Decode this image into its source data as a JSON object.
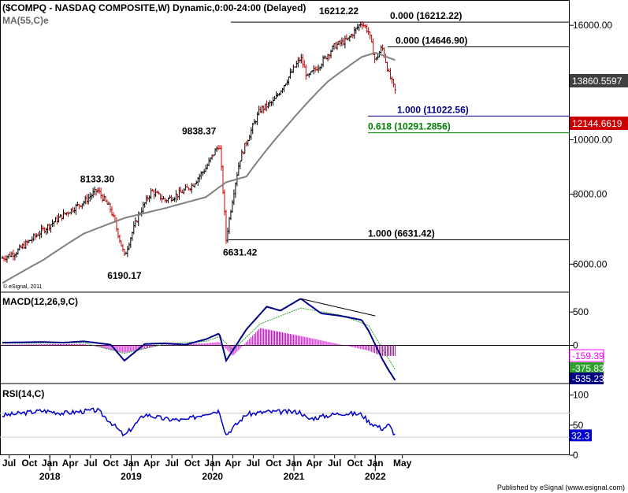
{
  "header": {
    "title": "($COMPQ - NASDAQ COMPOSITE,W) Dynamic,0:00-24:00 (Delayed)",
    "ma_label": "MA(55,C)e",
    "copyright": "© eSignal, 2011",
    "footer": "Published by eSignal (www.esignal.com)"
  },
  "chart_data": [
    {
      "type": "line",
      "name": "price-panel",
      "title": "($COMPQ - NASDAQ COMPOSITE,W) Dynamic,0:00-24:00 (Delayed)",
      "y_ticks": [
        "16000.00",
        "10000.00",
        "8000.00",
        "6000.00"
      ],
      "ylim": [
        6000,
        16500
      ],
      "annotations": {
        "price_labels": [
          "8133.30",
          "6190.17",
          "6631.42",
          "9838.37",
          "16212.22"
        ],
        "fib_levels": [
          {
            "label": "0.000 (16212.22)",
            "value": 16212.22,
            "color": "#000000"
          },
          {
            "label": "0.000 (14646.90)",
            "value": 14646.9,
            "color": "#000000"
          },
          {
            "label": "1.000 (11022.56)",
            "value": 11022.56,
            "color": "#000080"
          },
          {
            "label": "0.618 (10291.2856)",
            "value": 10291.2856,
            "color": "#008000"
          },
          {
            "label": "1.000 (6631.42)",
            "value": 6631.42,
            "color": "#000000"
          }
        ],
        "current_ma": "13860.5597",
        "current_price": "12144.6619"
      },
      "series": [
        {
          "name": "$COMPQ",
          "color": "#000000",
          "points": [
            [
              "2017-06",
              6150
            ],
            [
              "2017-08",
              6300
            ],
            [
              "2017-10",
              6600
            ],
            [
              "2017-12",
              6900
            ],
            [
              "2018-03",
              7350
            ],
            [
              "2018-06",
              7750
            ],
            [
              "2018-08",
              8133.3
            ],
            [
              "2018-10",
              7500
            ],
            [
              "2018-12",
              6190.17
            ],
            [
              "2019-02",
              7300
            ],
            [
              "2019-04",
              8100
            ],
            [
              "2019-06",
              7800
            ],
            [
              "2019-08",
              8000
            ],
            [
              "2019-10",
              8300
            ],
            [
              "2019-12",
              8900
            ],
            [
              "2020-02",
              9838.37
            ],
            [
              "2020-03",
              6631.42
            ],
            [
              "2020-05",
              9200
            ],
            [
              "2020-08",
              11300
            ],
            [
              "2020-10",
              11700
            ],
            [
              "2020-12",
              12800
            ],
            [
              "2021-02",
              14000
            ],
            [
              "2021-03",
              12900
            ],
            [
              "2021-05",
              13700
            ],
            [
              "2021-07",
              14700
            ],
            [
              "2021-09",
              15100
            ],
            [
              "2021-11",
              16212.22
            ],
            [
              "2021-12",
              15600
            ],
            [
              "2022-01",
              13800
            ],
            [
              "2022-02",
              14646.9
            ],
            [
              "2022-03",
              13100
            ],
            [
              "2022-04",
              12144.66
            ]
          ]
        },
        {
          "name": "MA(55,C)e",
          "color": "#808080",
          "points": [
            [
              "2017-06",
              5550
            ],
            [
              "2017-12",
              6100
            ],
            [
              "2018-06",
              6800
            ],
            [
              "2018-12",
              7250
            ],
            [
              "2019-06",
              7550
            ],
            [
              "2019-12",
              7900
            ],
            [
              "2020-03",
              8400
            ],
            [
              "2020-06",
              8600
            ],
            [
              "2020-12",
              10600
            ],
            [
              "2021-06",
              12700
            ],
            [
              "2021-11",
              14050
            ],
            [
              "2022-01",
              14300
            ],
            [
              "2022-04",
              13860.56
            ]
          ]
        }
      ]
    },
    {
      "type": "line",
      "name": "macd-panel",
      "title": "MACD(12,26,9,C)",
      "y_ticks": [
        "500",
        "0"
      ],
      "ylim": [
        -550,
        750
      ],
      "annotations": {
        "value_labels": [
          {
            "text": "-159.39",
            "color": "#cc00cc"
          },
          {
            "text": "-375.83",
            "color": "#2ca02c"
          },
          {
            "text": "-535.23",
            "color": "#000080"
          }
        ]
      },
      "series": [
        {
          "name": "MACD",
          "color": "#00008b",
          "points": [
            [
              "2017-06",
              40
            ],
            [
              "2017-12",
              50
            ],
            [
              "2018-03",
              40
            ],
            [
              "2018-06",
              60
            ],
            [
              "2018-10",
              10
            ],
            [
              "2018-12",
              -230
            ],
            [
              "2019-03",
              20
            ],
            [
              "2019-06",
              30
            ],
            [
              "2019-09",
              10
            ],
            [
              "2019-12",
              90
            ],
            [
              "2020-02",
              180
            ],
            [
              "2020-03",
              -230
            ],
            [
              "2020-06",
              240
            ],
            [
              "2020-09",
              580
            ],
            [
              "2020-11",
              520
            ],
            [
              "2021-02",
              700
            ],
            [
              "2021-05",
              480
            ],
            [
              "2021-08",
              440
            ],
            [
              "2021-11",
              380
            ],
            [
              "2021-12",
              220
            ],
            [
              "2022-02",
              -200
            ],
            [
              "2022-03",
              -380
            ],
            [
              "2022-04",
              -535.23
            ]
          ]
        },
        {
          "name": "Signal",
          "color": "#2ca02c",
          "points": [
            [
              "2017-06",
              30
            ],
            [
              "2018-06",
              40
            ],
            [
              "2018-12",
              -120
            ],
            [
              "2019-06",
              20
            ],
            [
              "2019-12",
              60
            ],
            [
              "2020-02",
              130
            ],
            [
              "2020-04",
              -70
            ],
            [
              "2020-08",
              320
            ],
            [
              "2021-02",
              560
            ],
            [
              "2021-08",
              450
            ],
            [
              "2021-12",
              300
            ],
            [
              "2022-02",
              -40
            ],
            [
              "2022-04",
              -375.83
            ]
          ]
        },
        {
          "name": "Histogram",
          "color": "#cc00cc",
          "points": [
            [
              "2017-06",
              10
            ],
            [
              "2018-06",
              20
            ],
            [
              "2018-12",
              -110
            ],
            [
              "2019-06",
              10
            ],
            [
              "2019-12",
              30
            ],
            [
              "2020-02",
              50
            ],
            [
              "2020-04",
              -160
            ],
            [
              "2020-08",
              260
            ],
            [
              "2021-02",
              140
            ],
            [
              "2021-08",
              10
            ],
            [
              "2021-12",
              -80
            ],
            [
              "2022-02",
              -160
            ],
            [
              "2022-04",
              -159.39
            ]
          ]
        }
      ]
    },
    {
      "type": "line",
      "name": "rsi-panel",
      "title": "RSI(14,C)",
      "y_ticks": [
        "100",
        "50",
        "0"
      ],
      "ylim": [
        0,
        110
      ],
      "annotations": {
        "value_label": "32.3"
      },
      "series": [
        {
          "name": "RSI",
          "color": "#0000cc",
          "points": [
            [
              "2017-06",
              66
            ],
            [
              "2017-12",
              74
            ],
            [
              "2018-03",
              70
            ],
            [
              "2018-08",
              75
            ],
            [
              "2018-10",
              55
            ],
            [
              "2018-12",
              32
            ],
            [
              "2019-03",
              68
            ],
            [
              "2019-06",
              60
            ],
            [
              "2019-09",
              58
            ],
            [
              "2019-12",
              70
            ],
            [
              "2020-02",
              74
            ],
            [
              "2020-03",
              34
            ],
            [
              "2020-06",
              68
            ],
            [
              "2020-09",
              72
            ],
            [
              "2021-02",
              72
            ],
            [
              "2021-03",
              60
            ],
            [
              "2021-08",
              70
            ],
            [
              "2021-11",
              68
            ],
            [
              "2021-12",
              56
            ],
            [
              "2022-02",
              44
            ],
            [
              "2022-03",
              50
            ],
            [
              "2022-04",
              32.3
            ]
          ]
        }
      ]
    }
  ],
  "x_axis": {
    "month_labels": [
      {
        "t": "2017-07",
        "label": "Jul"
      },
      {
        "t": "2017-10",
        "label": "Oct"
      },
      {
        "t": "2018-01",
        "label": "Jan"
      },
      {
        "t": "2018-04",
        "label": "Apr"
      },
      {
        "t": "2018-07",
        "label": "Jul"
      },
      {
        "t": "2018-10",
        "label": "Oct"
      },
      {
        "t": "2019-01",
        "label": "Jan"
      },
      {
        "t": "2019-04",
        "label": "Apr"
      },
      {
        "t": "2019-07",
        "label": "Jul"
      },
      {
        "t": "2019-10",
        "label": "Oct"
      },
      {
        "t": "2020-01",
        "label": "Jan"
      },
      {
        "t": "2020-04",
        "label": "Apr"
      },
      {
        "t": "2020-07",
        "label": "Jul"
      },
      {
        "t": "2020-10",
        "label": "Oct"
      },
      {
        "t": "2021-01",
        "label": "Jan"
      },
      {
        "t": "2021-04",
        "label": "Apr"
      },
      {
        "t": "2021-07",
        "label": "Jul"
      },
      {
        "t": "2021-10",
        "label": "Oct"
      },
      {
        "t": "2022-01",
        "label": "Jan"
      },
      {
        "t": "2022-05",
        "label": "May"
      }
    ],
    "year_labels": [
      {
        "t": "2018-01",
        "label": "2018"
      },
      {
        "t": "2019-01",
        "label": "2019"
      },
      {
        "t": "2020-01",
        "label": "2020"
      },
      {
        "t": "2021-01",
        "label": "2021"
      },
      {
        "t": "2022-01",
        "label": "2022"
      }
    ]
  },
  "colors": {
    "price_bar": "#000000",
    "price_bar_down": "#cc0000",
    "ma": "#808080",
    "grid": "#cccccc",
    "current_ma_bg": "#404040",
    "current_price_bg": "#cc0000",
    "macd_label_1_bg": "#ff00ff",
    "macd_label_2_bg": "#2ca02c",
    "macd_label_3_bg": "#000080",
    "rsi_label_bg": "#0000cc"
  }
}
